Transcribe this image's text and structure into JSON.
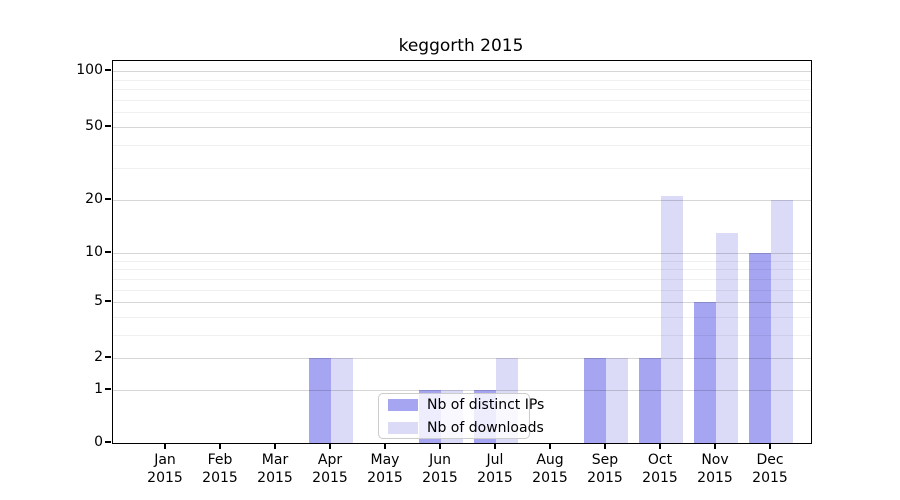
{
  "title": "keggorth 2015",
  "chart_data": {
    "type": "bar",
    "yscale": "symlog",
    "grid": true,
    "categories": [
      "Jan",
      "Feb",
      "Mar",
      "Apr",
      "May",
      "Jun",
      "Jul",
      "Aug",
      "Sep",
      "Oct",
      "Nov",
      "Dec"
    ],
    "year": "2015",
    "series": [
      {
        "name": "Nb of distinct IPs",
        "color": "#a5a5f2",
        "values": [
          0,
          0,
          0,
          2,
          0,
          1,
          1,
          0,
          2,
          2,
          5,
          10
        ]
      },
      {
        "name": "Nb of downloads",
        "color": "#dbdbf8",
        "values": [
          0,
          0,
          0,
          2,
          0,
          1,
          2,
          0,
          2,
          21,
          13,
          20
        ]
      }
    ],
    "y_major_ticks": [
      0,
      1,
      2,
      5,
      10,
      20,
      50,
      100
    ],
    "y_minor_ticks": [
      3,
      4,
      6,
      7,
      8,
      9,
      30,
      40,
      60,
      70,
      80,
      90
    ],
    "ylim": [
      0,
      113
    ],
    "legend_position": "lower center"
  }
}
